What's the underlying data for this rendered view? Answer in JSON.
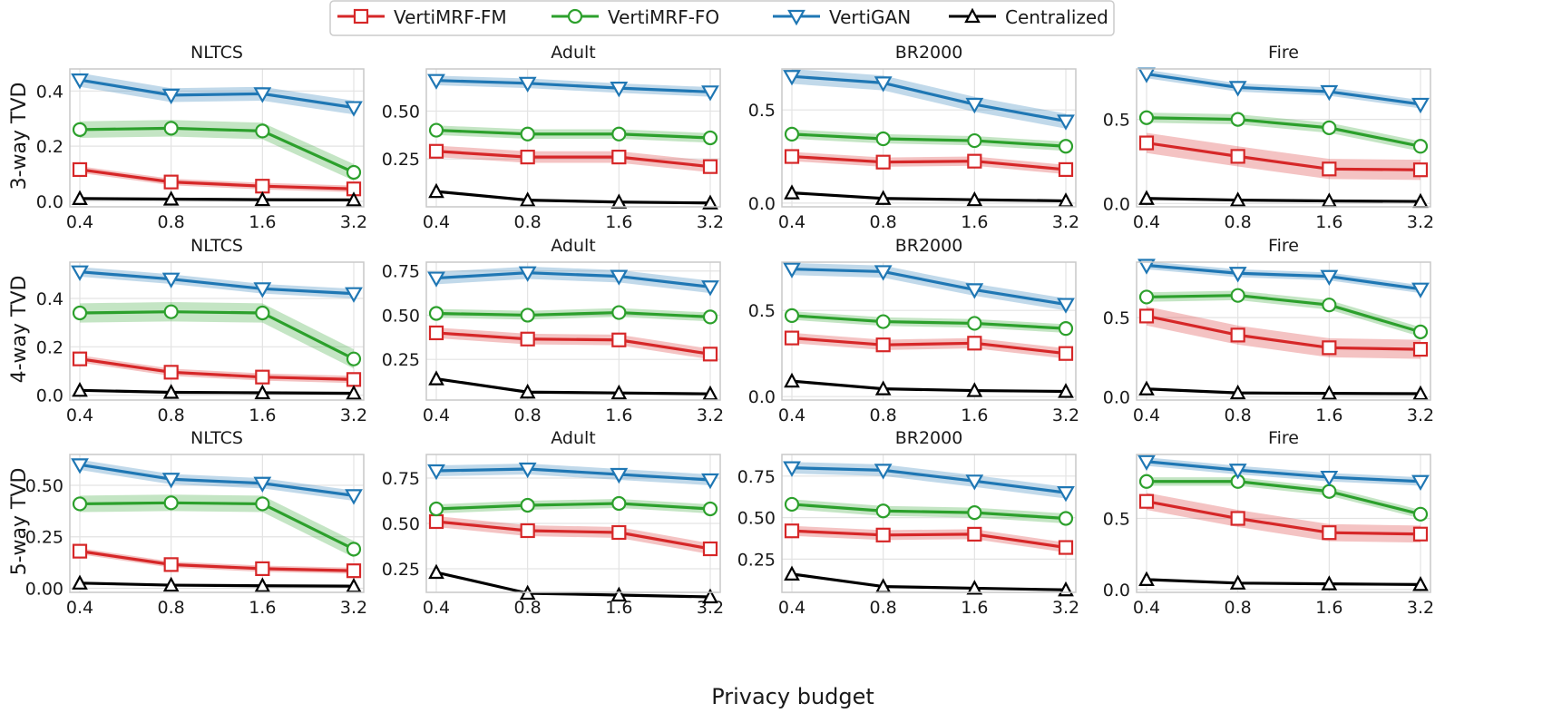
{
  "figure": {
    "xlabel": "Privacy budget",
    "legend": [
      {
        "name": "VertiMRF-FM",
        "color": "#d62728",
        "marker": "square"
      },
      {
        "name": "VertiMRF-FO",
        "color": "#2ca02c",
        "marker": "circle"
      },
      {
        "name": "VertiGAN",
        "color": "#1f77b4",
        "marker": "triangle-down"
      },
      {
        "name": "Centralized",
        "color": "#000000",
        "marker": "triangle-up"
      }
    ],
    "row_labels": [
      "3-way TVD",
      "4-way TVD",
      "5-way TVD"
    ]
  },
  "chart_data": [
    {
      "type": "line",
      "row": 0,
      "col": 0,
      "title": "NLTCS",
      "xlabel": "",
      "ylabel": "3-way TVD",
      "x": [
        "0.4",
        "0.8",
        "1.6",
        "3.2"
      ],
      "ylim": [
        -0.02,
        0.48
      ],
      "yticks": [
        0.0,
        0.2,
        0.4
      ],
      "ytick_labels": [
        "0.0",
        "0.2",
        "0.4"
      ],
      "series": [
        {
          "name": "VertiMRF-FM",
          "values": [
            0.115,
            0.07,
            0.055,
            0.045
          ],
          "band": 0.012
        },
        {
          "name": "VertiMRF-FO",
          "values": [
            0.26,
            0.265,
            0.255,
            0.105
          ],
          "band": 0.03
        },
        {
          "name": "VertiGAN",
          "values": [
            0.44,
            0.385,
            0.39,
            0.34
          ],
          "band": 0.025
        },
        {
          "name": "Centralized",
          "values": [
            0.01,
            0.008,
            0.006,
            0.005
          ],
          "band": 0
        }
      ]
    },
    {
      "type": "line",
      "row": 0,
      "col": 1,
      "title": "Adult",
      "xlabel": "",
      "ylabel": "",
      "x": [
        "0.4",
        "0.8",
        "1.6",
        "3.2"
      ],
      "ylim": [
        0.0,
        0.72
      ],
      "yticks": [
        0.25,
        0.5
      ],
      "ytick_labels": [
        "0.25",
        "0.50"
      ],
      "series": [
        {
          "name": "VertiMRF-FM",
          "values": [
            0.29,
            0.26,
            0.26,
            0.21
          ],
          "band": 0.03
        },
        {
          "name": "VertiMRF-FO",
          "values": [
            0.4,
            0.38,
            0.38,
            0.36
          ],
          "band": 0.025
        },
        {
          "name": "VertiGAN",
          "values": [
            0.66,
            0.645,
            0.62,
            0.6
          ],
          "band": 0.025
        },
        {
          "name": "Centralized",
          "values": [
            0.08,
            0.035,
            0.025,
            0.02
          ],
          "band": 0
        }
      ]
    },
    {
      "type": "line",
      "row": 0,
      "col": 2,
      "title": "BR2000",
      "xlabel": "",
      "ylabel": "",
      "x": [
        "0.4",
        "0.8",
        "1.6",
        "3.2"
      ],
      "ylim": [
        -0.02,
        0.72
      ],
      "yticks": [
        0.0,
        0.5
      ],
      "ytick_labels": [
        "0.0",
        "0.5"
      ],
      "series": [
        {
          "name": "VertiMRF-FM",
          "values": [
            0.25,
            0.22,
            0.225,
            0.18
          ],
          "band": 0.025
        },
        {
          "name": "VertiMRF-FO",
          "values": [
            0.37,
            0.345,
            0.335,
            0.305
          ],
          "band": 0.025
        },
        {
          "name": "VertiGAN",
          "values": [
            0.68,
            0.645,
            0.53,
            0.44
          ],
          "band": 0.04
        },
        {
          "name": "Centralized",
          "values": [
            0.055,
            0.025,
            0.018,
            0.012
          ],
          "band": 0
        }
      ]
    },
    {
      "type": "line",
      "row": 0,
      "col": 3,
      "title": "Fire",
      "xlabel": "",
      "ylabel": "",
      "x": [
        "0.4",
        "0.8",
        "1.6",
        "3.2"
      ],
      "ylim": [
        -0.02,
        0.8
      ],
      "yticks": [
        0.0,
        0.5
      ],
      "ytick_labels": [
        "0.0",
        "0.5"
      ],
      "series": [
        {
          "name": "VertiMRF-FM",
          "values": [
            0.36,
            0.28,
            0.205,
            0.2
          ],
          "band": 0.06
        },
        {
          "name": "VertiMRF-FO",
          "values": [
            0.51,
            0.5,
            0.45,
            0.34
          ],
          "band": 0.03
        },
        {
          "name": "VertiGAN",
          "values": [
            0.77,
            0.69,
            0.665,
            0.59
          ],
          "band": 0.025
        },
        {
          "name": "Centralized",
          "values": [
            0.03,
            0.02,
            0.015,
            0.012
          ],
          "band": 0
        }
      ]
    },
    {
      "type": "line",
      "row": 1,
      "col": 0,
      "title": "NLTCS",
      "xlabel": "",
      "ylabel": "4-way TVD",
      "x": [
        "0.4",
        "0.8",
        "1.6",
        "3.2"
      ],
      "ylim": [
        -0.02,
        0.55
      ],
      "yticks": [
        0.0,
        0.2,
        0.4
      ],
      "ytick_labels": [
        "0.0",
        "0.2",
        "0.4"
      ],
      "series": [
        {
          "name": "VertiMRF-FM",
          "values": [
            0.15,
            0.095,
            0.075,
            0.065
          ],
          "band": 0.015
        },
        {
          "name": "VertiMRF-FO",
          "values": [
            0.34,
            0.345,
            0.34,
            0.15
          ],
          "band": 0.04
        },
        {
          "name": "VertiGAN",
          "values": [
            0.51,
            0.48,
            0.44,
            0.42
          ],
          "band": 0.02
        },
        {
          "name": "Centralized",
          "values": [
            0.02,
            0.012,
            0.01,
            0.008
          ],
          "band": 0
        }
      ]
    },
    {
      "type": "line",
      "row": 1,
      "col": 1,
      "title": "Adult",
      "xlabel": "",
      "ylabel": "",
      "x": [
        "0.4",
        "0.8",
        "1.6",
        "3.2"
      ],
      "ylim": [
        0.02,
        0.8
      ],
      "yticks": [
        0.25,
        0.5,
        0.75
      ],
      "ytick_labels": [
        "0.25",
        "0.50",
        "0.75"
      ],
      "series": [
        {
          "name": "VertiMRF-FM",
          "values": [
            0.4,
            0.365,
            0.36,
            0.28
          ],
          "band": 0.03
        },
        {
          "name": "VertiMRF-FO",
          "values": [
            0.51,
            0.5,
            0.515,
            0.49
          ],
          "band": 0.025
        },
        {
          "name": "VertiGAN",
          "values": [
            0.71,
            0.74,
            0.72,
            0.66
          ],
          "band": 0.035
        },
        {
          "name": "Centralized",
          "values": [
            0.14,
            0.065,
            0.06,
            0.055
          ],
          "band": 0
        }
      ]
    },
    {
      "type": "line",
      "row": 1,
      "col": 2,
      "title": "BR2000",
      "xlabel": "",
      "ylabel": "",
      "x": [
        "0.4",
        "0.8",
        "1.6",
        "3.2"
      ],
      "ylim": [
        -0.02,
        0.78
      ],
      "yticks": [
        0.0,
        0.5
      ],
      "ytick_labels": [
        "0.0",
        "0.5"
      ],
      "series": [
        {
          "name": "VertiMRF-FM",
          "values": [
            0.34,
            0.3,
            0.31,
            0.25
          ],
          "band": 0.03
        },
        {
          "name": "VertiMRF-FO",
          "values": [
            0.47,
            0.435,
            0.425,
            0.395
          ],
          "band": 0.025
        },
        {
          "name": "VertiGAN",
          "values": [
            0.74,
            0.725,
            0.62,
            0.535
          ],
          "band": 0.035
        },
        {
          "name": "Centralized",
          "values": [
            0.09,
            0.045,
            0.035,
            0.03
          ],
          "band": 0
        }
      ]
    },
    {
      "type": "line",
      "row": 1,
      "col": 3,
      "title": "Fire",
      "xlabel": "",
      "ylabel": "",
      "x": [
        "0.4",
        "0.8",
        "1.6",
        "3.2"
      ],
      "ylim": [
        -0.02,
        0.85
      ],
      "yticks": [
        0.0,
        0.5
      ],
      "ytick_labels": [
        "0.0",
        "0.5"
      ],
      "series": [
        {
          "name": "VertiMRF-FM",
          "values": [
            0.51,
            0.39,
            0.31,
            0.3
          ],
          "band": 0.06
        },
        {
          "name": "VertiMRF-FO",
          "values": [
            0.63,
            0.64,
            0.58,
            0.41
          ],
          "band": 0.03
        },
        {
          "name": "VertiGAN",
          "values": [
            0.83,
            0.78,
            0.76,
            0.68
          ],
          "band": 0.025
        },
        {
          "name": "Centralized",
          "values": [
            0.05,
            0.025,
            0.022,
            0.02
          ],
          "band": 0
        }
      ]
    },
    {
      "type": "line",
      "row": 2,
      "col": 0,
      "title": "NLTCS",
      "xlabel": "",
      "ylabel": "5-way TVD",
      "x": [
        "0.4",
        "0.8",
        "1.6",
        "3.2"
      ],
      "ylim": [
        -0.02,
        0.65
      ],
      "yticks": [
        0.0,
        0.25,
        0.5
      ],
      "ytick_labels": [
        "0.00",
        "0.25",
        "0.50"
      ],
      "series": [
        {
          "name": "VertiMRF-FM",
          "values": [
            0.18,
            0.115,
            0.095,
            0.085
          ],
          "band": 0.015
        },
        {
          "name": "VertiMRF-FO",
          "values": [
            0.41,
            0.415,
            0.41,
            0.19
          ],
          "band": 0.04
        },
        {
          "name": "VertiGAN",
          "values": [
            0.6,
            0.53,
            0.51,
            0.45
          ],
          "band": 0.025
        },
        {
          "name": "Centralized",
          "values": [
            0.025,
            0.015,
            0.012,
            0.01
          ],
          "band": 0
        }
      ]
    },
    {
      "type": "line",
      "row": 2,
      "col": 1,
      "title": "Adult",
      "xlabel": "",
      "ylabel": "",
      "x": [
        "0.4",
        "0.8",
        "1.6",
        "3.2"
      ],
      "ylim": [
        0.12,
        0.88
      ],
      "yticks": [
        0.25,
        0.5,
        0.75
      ],
      "ytick_labels": [
        "0.25",
        "0.50",
        "0.75"
      ],
      "series": [
        {
          "name": "VertiMRF-FM",
          "values": [
            0.51,
            0.46,
            0.45,
            0.36
          ],
          "band": 0.03
        },
        {
          "name": "VertiMRF-FO",
          "values": [
            0.58,
            0.6,
            0.61,
            0.58
          ],
          "band": 0.025
        },
        {
          "name": "VertiGAN",
          "values": [
            0.79,
            0.8,
            0.77,
            0.74
          ],
          "band": 0.03
        },
        {
          "name": "Centralized",
          "values": [
            0.23,
            0.115,
            0.105,
            0.095
          ],
          "band": 0
        }
      ]
    },
    {
      "type": "line",
      "row": 2,
      "col": 2,
      "title": "BR2000",
      "xlabel": "",
      "ylabel": "",
      "x": [
        "0.4",
        "0.8",
        "1.6",
        "3.2"
      ],
      "ylim": [
        0.05,
        0.88
      ],
      "yticks": [
        0.25,
        0.5,
        0.75
      ],
      "ytick_labels": [
        "0.25",
        "0.50",
        "0.75"
      ],
      "series": [
        {
          "name": "VertiMRF-FM",
          "values": [
            0.42,
            0.395,
            0.4,
            0.32
          ],
          "band": 0.03
        },
        {
          "name": "VertiMRF-FO",
          "values": [
            0.58,
            0.54,
            0.53,
            0.495
          ],
          "band": 0.03
        },
        {
          "name": "VertiGAN",
          "values": [
            0.8,
            0.785,
            0.72,
            0.65
          ],
          "band": 0.035
        },
        {
          "name": "Centralized",
          "values": [
            0.16,
            0.085,
            0.075,
            0.065
          ],
          "band": 0
        }
      ]
    },
    {
      "type": "line",
      "row": 2,
      "col": 3,
      "title": "Fire",
      "xlabel": "",
      "ylabel": "",
      "x": [
        "0.4",
        "0.8",
        "1.6",
        "3.2"
      ],
      "ylim": [
        -0.02,
        0.95
      ],
      "yticks": [
        0.0,
        0.5
      ],
      "ytick_labels": [
        "0.0",
        "0.5"
      ],
      "series": [
        {
          "name": "VertiMRF-FM",
          "values": [
            0.62,
            0.5,
            0.4,
            0.39
          ],
          "band": 0.06
        },
        {
          "name": "VertiMRF-FO",
          "values": [
            0.76,
            0.76,
            0.69,
            0.53
          ],
          "band": 0.03
        },
        {
          "name": "VertiGAN",
          "values": [
            0.9,
            0.84,
            0.79,
            0.76
          ],
          "band": 0.03
        },
        {
          "name": "Centralized",
          "values": [
            0.07,
            0.045,
            0.04,
            0.035
          ],
          "band": 0
        }
      ]
    }
  ]
}
